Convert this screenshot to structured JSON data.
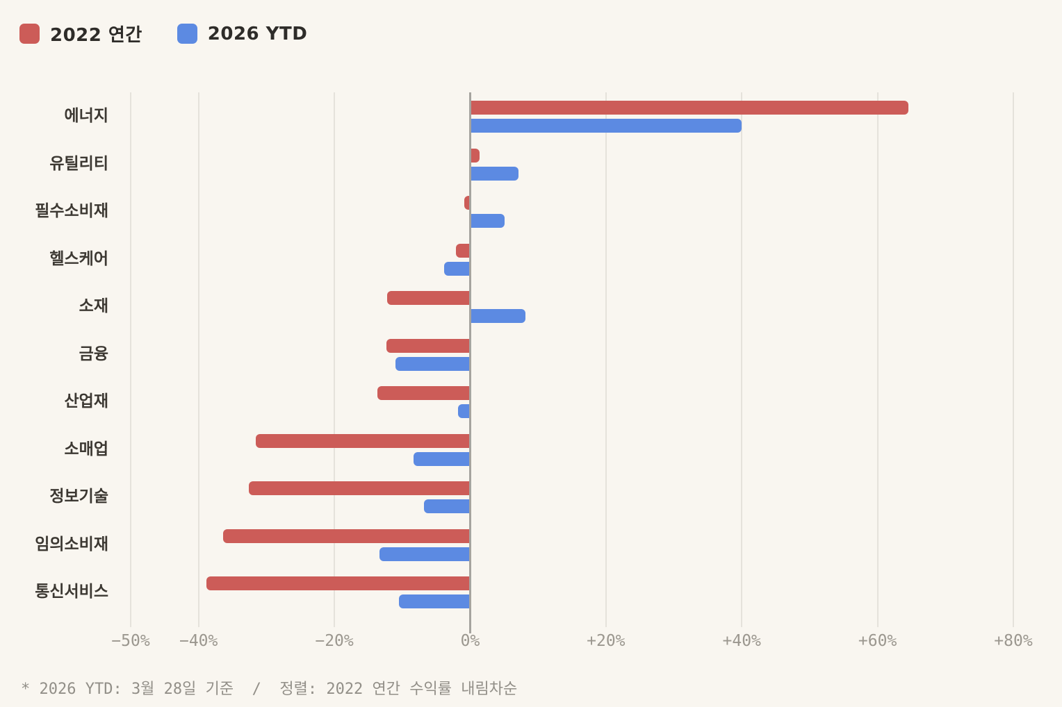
{
  "colors": {
    "background": "#f9f6f0",
    "series_2022": "#cc5c58",
    "series_2026": "#5c8ae2",
    "gridline": "#e5e2db",
    "zero_axis": "#a6a49f",
    "label_text": "#3c3832",
    "tick_text": "#9b978f"
  },
  "legend": {
    "items": [
      {
        "label": "2022 연간",
        "color": "#cc5c58"
      },
      {
        "label": "2026 YTD",
        "color": "#5c8ae2"
      }
    ]
  },
  "chart_data": {
    "type": "bar",
    "orientation": "horizontal",
    "title": "",
    "xlabel": "",
    "ylabel": "",
    "xlim": [
      -50,
      80
    ],
    "grid": true,
    "legend_position": "top-left",
    "sort_note": "sorted by 2022 annual return descending",
    "categories": [
      "에너지",
      "유틸리티",
      "필수소비재",
      "헬스케어",
      "소재",
      "금융",
      "산업재",
      "소매업",
      "정보기술",
      "임의소비재",
      "통신서비스"
    ],
    "series": [
      {
        "name": "2022 연간",
        "color": "#cc5c58",
        "values": [
          64.5,
          1.4,
          -0.9,
          -2.1,
          -12.2,
          -12.3,
          -13.7,
          -31.6,
          -32.6,
          -36.4,
          -38.8
        ]
      },
      {
        "name": "2026 YTD",
        "color": "#5c8ae2",
        "values": [
          40.0,
          7.1,
          5.1,
          -3.8,
          8.1,
          -11.0,
          -1.8,
          -8.3,
          -6.8,
          -13.4,
          -10.5
        ]
      }
    ],
    "x_ticks": [
      {
        "value": -50,
        "label": "−50%"
      },
      {
        "value": -40,
        "label": "−40%"
      },
      {
        "value": -20,
        "label": "−20%"
      },
      {
        "value": 0,
        "label": "0%"
      },
      {
        "value": 20,
        "label": "+20%"
      },
      {
        "value": 40,
        "label": "+40%"
      },
      {
        "value": 60,
        "label": "+60%"
      },
      {
        "value": 80,
        "label": "+80%"
      }
    ]
  },
  "footnote": "* 2026 YTD: 3월 28일 기준  /  정렬: 2022 연간 수익률 내림차순"
}
